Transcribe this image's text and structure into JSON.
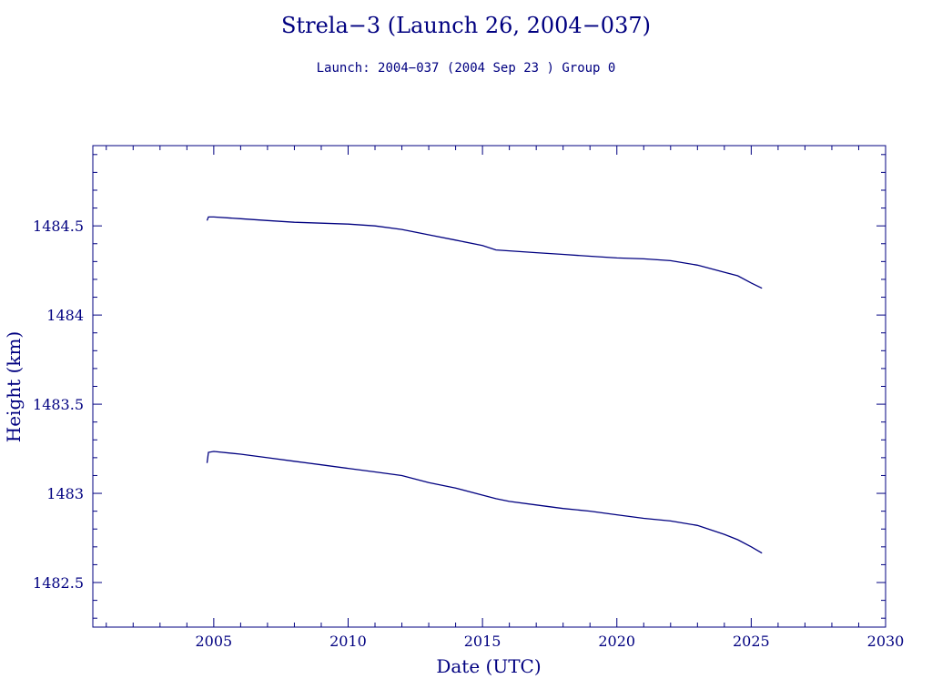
{
  "header": {
    "title": "Strela−3 (Launch 26, 2004−037)",
    "subtitle": "Launch: 2004−037  (2004 Sep 23 )  Group 0"
  },
  "colors": {
    "ink": "#000080",
    "background": "#ffffff"
  },
  "chart_data": {
    "type": "line",
    "title": "Strela−3 (Launch 26, 2004−037)",
    "subtitle": "Launch: 2004−037  (2004 Sep 23 )  Group 0",
    "xlabel": "Date (UTC)",
    "ylabel": "Height (km)",
    "xlim": [
      2000.5,
      2030
    ],
    "ylim": [
      1482.25,
      1484.95
    ],
    "x_ticks": [
      2005,
      2010,
      2015,
      2020,
      2025,
      2030
    ],
    "x_tick_labels": [
      "2005",
      "2010",
      "2015",
      "2020",
      "2025",
      "2030"
    ],
    "y_ticks": [
      1482.5,
      1483,
      1483.5,
      1484,
      1484.5
    ],
    "y_tick_labels": [
      "1482.5",
      "1483",
      "1483.5",
      "1484",
      "1484.5"
    ],
    "grid": false,
    "legend": "none",
    "series": [
      {
        "x": [
          2004.75,
          2004.8,
          2005,
          2006,
          2007,
          2008,
          2009,
          2010,
          2011,
          2012,
          2013,
          2014,
          2015,
          2015.5,
          2016,
          2017,
          2018,
          2019,
          2020,
          2021,
          2022,
          2023,
          2024,
          2024.5,
          2025,
          2025.4
        ],
        "y": [
          1484.53,
          1484.55,
          1484.55,
          1484.54,
          1484.53,
          1484.52,
          1484.515,
          1484.51,
          1484.5,
          1484.48,
          1484.45,
          1484.42,
          1484.39,
          1484.365,
          1484.36,
          1484.35,
          1484.34,
          1484.33,
          1484.32,
          1484.315,
          1484.305,
          1484.28,
          1484.24,
          1484.22,
          1484.18,
          1484.15
        ]
      },
      {
        "x": [
          2004.75,
          2004.8,
          2005,
          2006,
          2007,
          2008,
          2009,
          2010,
          2011,
          2012,
          2013,
          2014,
          2015,
          2015.5,
          2016,
          2017,
          2018,
          2019,
          2020,
          2021,
          2022,
          2023,
          2024,
          2024.5,
          2025,
          2025.4
        ],
        "y": [
          1483.17,
          1483.23,
          1483.235,
          1483.22,
          1483.2,
          1483.18,
          1483.16,
          1483.14,
          1483.12,
          1483.1,
          1483.06,
          1483.03,
          1482.99,
          1482.97,
          1482.955,
          1482.935,
          1482.915,
          1482.9,
          1482.88,
          1482.86,
          1482.845,
          1482.82,
          1482.77,
          1482.74,
          1482.7,
          1482.665
        ]
      }
    ]
  }
}
